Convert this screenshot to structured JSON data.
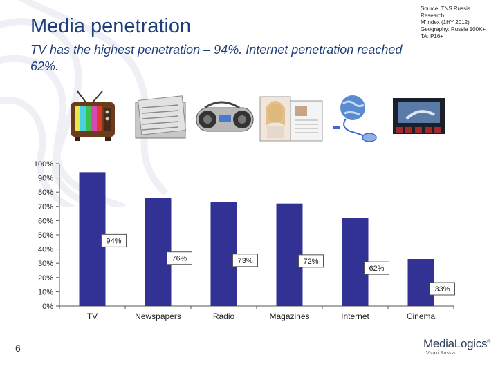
{
  "header": {
    "title": "Media penetration",
    "subtitle": "TV has the highest penetration – 94%. Internet penetration reached 62%."
  },
  "source": {
    "lines": [
      "Source: TNS Russia",
      "Research:",
      "M'Index (1HY 2012)",
      "Geography: Russia 100K+",
      "TA: P16+"
    ]
  },
  "icons": [
    "tv-icon",
    "newspapers-icon",
    "radio-icon",
    "magazines-icon",
    "internet-icon",
    "cinema-icon"
  ],
  "chart_data": {
    "type": "bar",
    "categories": [
      "TV",
      "Newspapers",
      "Radio",
      "Magazines",
      "Internet",
      "Cinema"
    ],
    "values": [
      94,
      76,
      73,
      72,
      62,
      33
    ],
    "data_labels": [
      "94%",
      "76%",
      "73%",
      "72%",
      "62%",
      "33%"
    ],
    "title": "",
    "xlabel": "",
    "ylabel": "",
    "ylim": [
      0,
      100
    ],
    "yticks": [
      "0%",
      "10%",
      "20%",
      "30%",
      "40%",
      "50%",
      "60%",
      "70%",
      "80%",
      "90%",
      "100%"
    ],
    "bar_color": "#323295",
    "grid": false
  },
  "footer": {
    "page_number": "6",
    "logo_main": "MediaLogics",
    "logo_tm": "®",
    "logo_sub": "Vivaki Russia"
  }
}
